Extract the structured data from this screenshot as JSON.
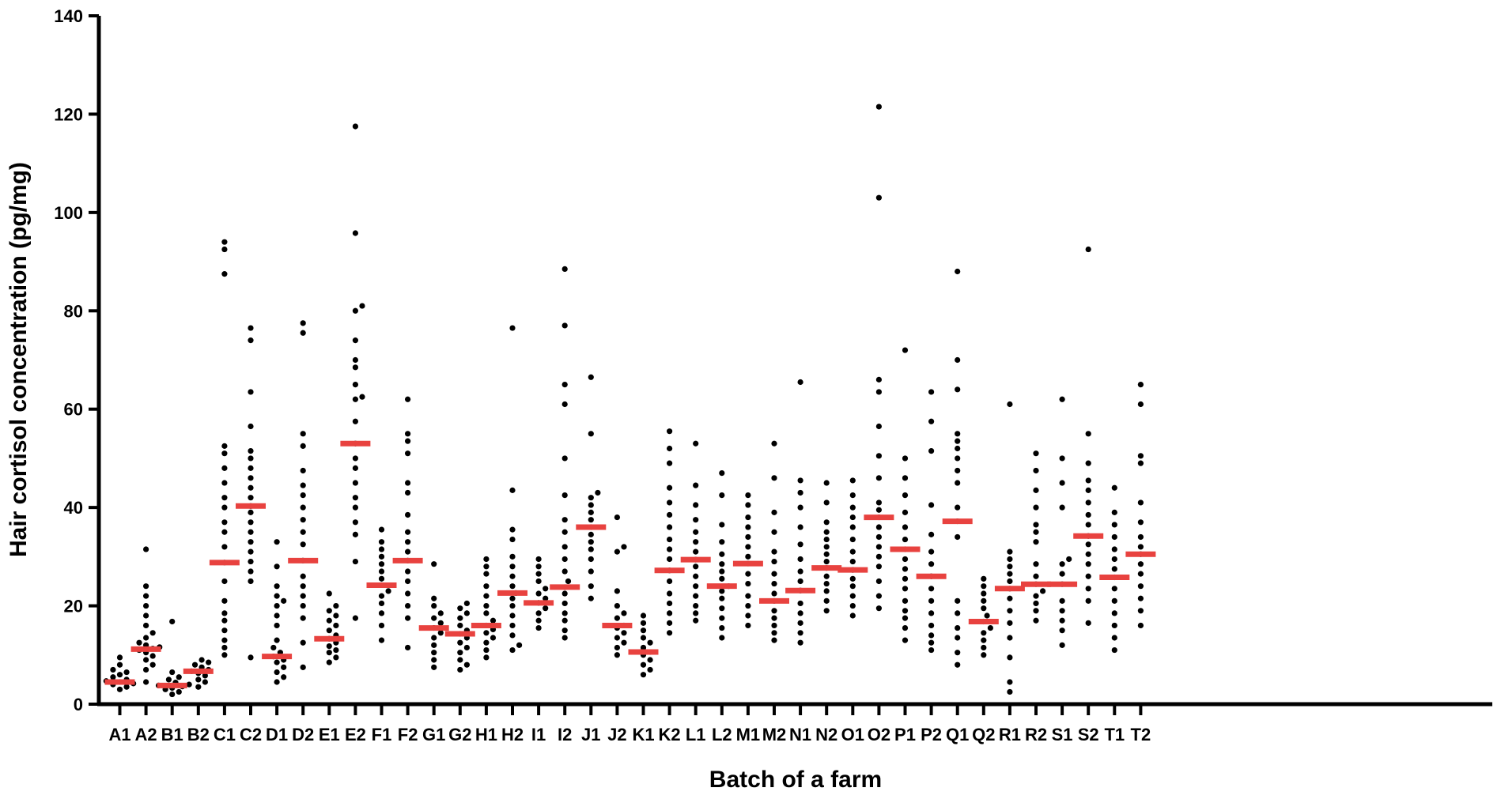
{
  "chart_data": {
    "type": "scatter",
    "title": "",
    "xlabel": "Batch of a farm",
    "ylabel": "Hair cortisol concentration (pg/mg)",
    "ylim": [
      0,
      140
    ],
    "yticks": [
      "0",
      "20",
      "40",
      "60",
      "80",
      "100",
      "120",
      "140"
    ],
    "grid": false,
    "colors": {
      "points": "#000000",
      "median": "#e8423f",
      "axis": "#000000"
    },
    "categories": [
      "A1",
      "A2",
      "B1",
      "B2",
      "C1",
      "C2",
      "D1",
      "D2",
      "E1",
      "E2",
      "F1",
      "F2",
      "G1",
      "G2",
      "H1",
      "H2",
      "I1",
      "I2",
      "J1",
      "J2",
      "K1",
      "K2",
      "L1",
      "L2",
      "M1",
      "M2",
      "N1",
      "N2",
      "O1",
      "O2",
      "P1",
      "P2",
      "Q1",
      "Q2",
      "R1",
      "R2",
      "S1",
      "S2",
      "T1",
      "T2"
    ],
    "medians": [
      4.5,
      11.2,
      3.8,
      6.7,
      28.8,
      40.3,
      9.7,
      29.2,
      13.3,
      53.0,
      24.2,
      29.2,
      15.5,
      14.3,
      16.0,
      22.6,
      20.6,
      23.8,
      36.0,
      16.0,
      10.6,
      27.2,
      29.4,
      24.0,
      28.6,
      21.0,
      23.1,
      27.7,
      27.3,
      38.0,
      31.5,
      26.0,
      37.2,
      16.8,
      23.5,
      24.4,
      24.4,
      34.2,
      25.8,
      30.5
    ],
    "points": [
      [
        3.0,
        3.5,
        4.0,
        4.2,
        4.5,
        4.7,
        5.0,
        5.5,
        6.0,
        6.5,
        7.0,
        8.0,
        9.5
      ],
      [
        4.5,
        7.0,
        8.0,
        9.0,
        9.8,
        10.5,
        11.0,
        11.3,
        11.6,
        12.0,
        12.5,
        13.5,
        14.5,
        16.0,
        18.0,
        20.0,
        22.0,
        24.0,
        31.5
      ],
      [
        2.0,
        2.5,
        3.0,
        3.3,
        3.6,
        3.8,
        4.0,
        4.4,
        5.0,
        5.5,
        6.5,
        16.8
      ],
      [
        3.5,
        4.5,
        5.0,
        5.8,
        6.3,
        6.7,
        7.0,
        7.5,
        8.0,
        8.5,
        9.0
      ],
      [
        10.0,
        11.5,
        13.0,
        15.0,
        17.0,
        18.5,
        21.0,
        25.0,
        28.8,
        32.0,
        35.0,
        37.0,
        40.0,
        42.0,
        45.0,
        48.0,
        51.0,
        52.5,
        87.5,
        92.5,
        94.0
      ],
      [
        9.5,
        25.0,
        27.0,
        29.0,
        31.0,
        33.0,
        35.0,
        37.0,
        39.0,
        40.3,
        42.0,
        44.0,
        46.0,
        48.0,
        50.0,
        51.5,
        56.5,
        63.5,
        74.0,
        76.5
      ],
      [
        4.5,
        5.5,
        6.5,
        7.5,
        8.5,
        9.0,
        9.7,
        10.5,
        11.5,
        13.0,
        16.0,
        18.0,
        20.0,
        21.0,
        22.0,
        24.0,
        28.0,
        33.0
      ],
      [
        7.5,
        12.5,
        17.5,
        20.0,
        22.0,
        24.0,
        26.0,
        29.2,
        32.5,
        35.0,
        37.5,
        40.0,
        42.5,
        44.5,
        47.5,
        52.5,
        55.0,
        75.5,
        77.5
      ],
      [
        8.5,
        9.5,
        10.5,
        11.0,
        11.8,
        12.5,
        13.3,
        14.0,
        15.0,
        16.0,
        17.0,
        18.0,
        19.0,
        20.0,
        22.5
      ],
      [
        17.5,
        29.0,
        34.5,
        37.0,
        40.0,
        42.0,
        45.0,
        48.0,
        50.0,
        53.0,
        57.5,
        62.0,
        62.5,
        65.0,
        68.5,
        70.0,
        74.0,
        80.0,
        81.0,
        95.8,
        117.5
      ],
      [
        13.0,
        16.0,
        18.5,
        20.5,
        22.0,
        23.0,
        24.2,
        25.5,
        27.0,
        28.5,
        30.0,
        31.5,
        33.0,
        35.5
      ],
      [
        11.5,
        17.5,
        20.0,
        22.5,
        25.0,
        27.0,
        29.2,
        31.0,
        33.0,
        35.0,
        38.5,
        43.0,
        45.0,
        51.0,
        53.5,
        55.0,
        62.0
      ],
      [
        7.5,
        9.0,
        10.5,
        12.0,
        13.5,
        14.5,
        15.5,
        16.5,
        17.5,
        18.5,
        20.0,
        21.5,
        28.5
      ],
      [
        7.0,
        8.0,
        9.0,
        10.5,
        11.5,
        12.5,
        13.5,
        14.3,
        15.0,
        16.0,
        17.5,
        18.5,
        19.5,
        20.5
      ],
      [
        9.5,
        11.0,
        12.5,
        13.5,
        14.5,
        15.2,
        16.0,
        17.0,
        18.5,
        20.0,
        22.0,
        24.0,
        26.5,
        28.0,
        29.5
      ],
      [
        11.0,
        12.0,
        14.0,
        16.0,
        18.0,
        20.0,
        21.5,
        22.6,
        24.0,
        26.0,
        28.0,
        30.0,
        33.5,
        35.5,
        43.5,
        76.5
      ],
      [
        15.5,
        17.0,
        18.5,
        19.5,
        20.6,
        21.5,
        22.5,
        23.5,
        25.0,
        26.5,
        28.0,
        29.5
      ],
      [
        13.5,
        15.0,
        17.0,
        18.5,
        20.5,
        22.5,
        23.8,
        25.0,
        27.0,
        29.5,
        32.0,
        35.0,
        37.5,
        42.5,
        50.0,
        61.0,
        65.0,
        77.0,
        88.5
      ],
      [
        21.5,
        24.0,
        27.0,
        29.5,
        31.5,
        33.0,
        34.5,
        36.0,
        37.5,
        39.0,
        40.5,
        42.0,
        43.0,
        55.0,
        66.5
      ],
      [
        10.0,
        11.5,
        12.5,
        13.5,
        14.5,
        15.5,
        16.0,
        17.5,
        18.5,
        20.0,
        23.0,
        31.0,
        32.0,
        38.0
      ],
      [
        6.0,
        7.0,
        8.0,
        9.0,
        10.0,
        10.6,
        11.5,
        12.5,
        13.5,
        15.0,
        16.5,
        18.0
      ],
      [
        14.5,
        16.5,
        18.5,
        20.5,
        22.5,
        25.0,
        27.2,
        29.5,
        31.5,
        33.5,
        36.0,
        38.5,
        41.0,
        44.0,
        49.0,
        52.0,
        55.5
      ],
      [
        17.0,
        18.5,
        20.0,
        22.0,
        24.0,
        26.0,
        28.0,
        29.4,
        31.0,
        33.0,
        35.0,
        37.5,
        40.5,
        44.5,
        53.0
      ],
      [
        13.5,
        15.5,
        17.5,
        19.5,
        21.5,
        23.0,
        24.0,
        25.5,
        27.0,
        28.5,
        30.5,
        33.0,
        36.5,
        42.5,
        47.0
      ],
      [
        16.0,
        18.0,
        20.0,
        22.0,
        24.5,
        26.5,
        28.6,
        30.0,
        32.0,
        34.0,
        36.0,
        38.0,
        40.5,
        42.5
      ],
      [
        13.0,
        14.5,
        16.0,
        17.5,
        19.0,
        21.0,
        22.5,
        24.5,
        26.5,
        29.0,
        31.0,
        35.0,
        39.0,
        46.0,
        53.0
      ],
      [
        12.5,
        14.5,
        16.5,
        18.5,
        20.5,
        23.1,
        25.0,
        27.0,
        29.5,
        32.5,
        36.0,
        40.0,
        43.0,
        45.5,
        65.5
      ],
      [
        19.0,
        21.0,
        23.0,
        24.5,
        26.0,
        27.7,
        29.0,
        30.5,
        32.0,
        33.5,
        35.0,
        37.0,
        41.0,
        45.0
      ],
      [
        18.0,
        20.0,
        22.0,
        24.0,
        25.5,
        27.3,
        29.0,
        31.0,
        33.5,
        36.0,
        38.0,
        40.0,
        42.5,
        45.5
      ],
      [
        19.5,
        22.0,
        25.0,
        28.0,
        30.0,
        32.0,
        34.0,
        36.0,
        38.0,
        39.5,
        41.0,
        46.0,
        50.5,
        56.5,
        63.5,
        66.0,
        103.0,
        121.5
      ],
      [
        13.0,
        15.5,
        17.5,
        19.0,
        21.0,
        23.5,
        25.5,
        27.5,
        29.5,
        31.5,
        33.5,
        36.0,
        39.0,
        42.5,
        46.0,
        50.0,
        72.0
      ],
      [
        11.0,
        12.5,
        14.0,
        16.0,
        18.5,
        21.0,
        23.5,
        26.0,
        28.5,
        31.0,
        34.5,
        40.5,
        51.5,
        57.5,
        63.5
      ],
      [
        8.0,
        10.5,
        13.5,
        15.5,
        18.5,
        21.0,
        34.0,
        37.2,
        40.0,
        45.0,
        47.5,
        50.0,
        52.0,
        53.5,
        55.0,
        64.0,
        70.0,
        88.0
      ],
      [
        10.0,
        11.5,
        13.0,
        14.5,
        15.5,
        16.8,
        18.0,
        19.5,
        21.0,
        22.5,
        24.0,
        25.5
      ],
      [
        2.5,
        4.5,
        9.5,
        13.5,
        16.5,
        19.0,
        21.5,
        23.5,
        25.0,
        26.5,
        28.0,
        29.5,
        31.0,
        61.0
      ],
      [
        17.0,
        19.0,
        20.5,
        22.0,
        23.0,
        24.4,
        26.0,
        28.5,
        33.0,
        35.0,
        36.5,
        40.0,
        43.5,
        47.5,
        51.0
      ],
      [
        12.0,
        15.0,
        17.0,
        19.0,
        21.0,
        24.4,
        26.5,
        28.5,
        29.5,
        40.0,
        45.0,
        50.0,
        62.0
      ],
      [
        16.5,
        21.0,
        23.5,
        26.0,
        28.5,
        30.5,
        32.5,
        34.2,
        36.5,
        38.5,
        41.0,
        43.5,
        45.5,
        49.0,
        55.0,
        92.5
      ],
      [
        11.0,
        13.5,
        16.0,
        18.5,
        21.0,
        23.5,
        25.8,
        27.5,
        29.5,
        31.5,
        34.0,
        36.5,
        39.0,
        44.0
      ],
      [
        16.0,
        19.0,
        21.5,
        24.0,
        26.5,
        28.5,
        30.5,
        32.0,
        34.0,
        37.0,
        41.0,
        49.0,
        50.5,
        61.0,
        65.0
      ]
    ]
  }
}
